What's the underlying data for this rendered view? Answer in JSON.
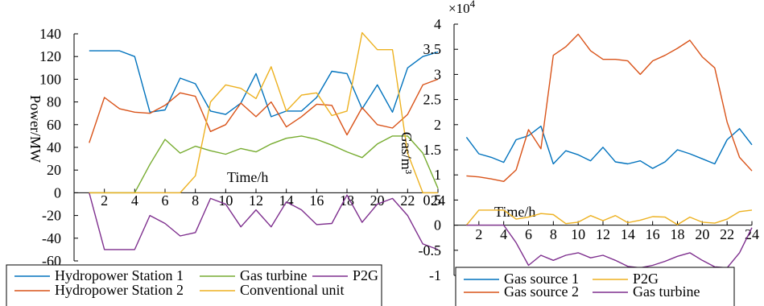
{
  "chart_data": [
    {
      "type": "line",
      "title": "",
      "xlabel": "Time/h",
      "ylabel": "Power/MW",
      "xlim": [
        0,
        24
      ],
      "ylim": [
        -60,
        140
      ],
      "x_ticks": [
        2,
        4,
        6,
        8,
        10,
        12,
        14,
        16,
        18,
        20,
        22,
        24
      ],
      "y_ticks": [
        -60,
        -40,
        -20,
        0,
        20,
        40,
        60,
        80,
        100,
        120,
        140
      ],
      "x_tick_labels": [
        "2",
        "4",
        "6",
        "8",
        "10",
        "12",
        "14",
        "16",
        "18",
        "20",
        "22",
        "24"
      ],
      "y_tick_labels": [
        "-60",
        "-40",
        "-20",
        "0",
        "20",
        "40",
        "60",
        "80",
        "100",
        "120",
        "140"
      ],
      "grid": false,
      "legend_position": "bottom",
      "x": [
        0,
        1,
        2,
        3,
        4,
        5,
        6,
        7,
        8,
        9,
        10,
        11,
        12,
        13,
        14,
        15,
        16,
        17,
        18,
        19,
        20,
        21,
        22,
        23,
        24
      ],
      "series": [
        {
          "name": "Hydropower Station 1",
          "color": "#0072bd",
          "values": [
            null,
            125,
            125,
            125,
            120,
            71,
            73,
            101,
            96,
            72,
            69,
            79,
            105,
            67,
            72,
            72,
            84,
            107,
            105,
            74,
            95,
            71,
            110,
            120,
            124
          ]
        },
        {
          "name": "Gas turbine",
          "color": "#77ac30",
          "values": [
            null,
            0,
            0,
            0,
            0,
            25,
            47,
            35,
            41,
            37,
            34,
            39,
            36,
            43,
            48,
            50,
            47,
            42,
            36,
            31,
            43,
            50,
            50,
            35,
            4
          ]
        },
        {
          "name": "P2G",
          "color": "#7e2f8e",
          "values": [
            null,
            0,
            -50,
            -50,
            -50,
            -20,
            -27,
            -38,
            -35,
            -5,
            -10,
            -30,
            -15,
            -30,
            -8,
            -15,
            -28,
            -27,
            -2,
            -26,
            -10,
            -5,
            -20,
            -45,
            -50
          ]
        },
        {
          "name": "Hydropower Station 2",
          "color": "#d95319",
          "values": [
            null,
            44,
            84,
            74,
            71,
            70,
            77,
            88,
            85,
            54,
            60,
            79,
            67,
            80,
            58,
            67,
            78,
            77,
            51,
            75,
            60,
            57,
            69,
            95,
            100
          ]
        },
        {
          "name": "Conventional unit",
          "color": "#edb120",
          "values": [
            null,
            0,
            0,
            0,
            0,
            0,
            0,
            0,
            15,
            80,
            95,
            92,
            83,
            111,
            72,
            86,
            88,
            68,
            72,
            141,
            126,
            126,
            35,
            0,
            0
          ]
        }
      ],
      "legend_layout": [
        [
          "Hydropower Station 1",
          "Gas turbine",
          "P2G"
        ],
        [
          "Hydropower Station 2",
          "Conventional unit"
        ]
      ]
    },
    {
      "type": "line",
      "title": "",
      "xlabel": "Time/h",
      "ylabel": "Gas/m³",
      "exponent_label": "×10",
      "exponent_sup": "4",
      "xlim": [
        0,
        24
      ],
      "ylim": [
        -1,
        4
      ],
      "x_ticks": [
        2,
        4,
        6,
        8,
        10,
        12,
        14,
        16,
        18,
        20,
        22,
        24
      ],
      "y_ticks": [
        -1,
        -0.5,
        0,
        0.5,
        1,
        1.5,
        2,
        2.5,
        3,
        3.5,
        4
      ],
      "x_tick_labels": [
        "2",
        "4",
        "6",
        "8",
        "10",
        "12",
        "14",
        "16",
        "18",
        "20",
        "22",
        "24"
      ],
      "y_tick_labels": [
        "-1",
        "-0.5",
        "0",
        "0.5",
        "1",
        "1.5",
        "2",
        "2.5",
        "3",
        "3.5",
        "4"
      ],
      "grid": false,
      "legend_position": "bottom",
      "x": [
        0,
        1,
        2,
        3,
        4,
        5,
        6,
        7,
        8,
        9,
        10,
        11,
        12,
        13,
        14,
        15,
        16,
        17,
        18,
        19,
        20,
        21,
        22,
        23,
        24
      ],
      "series": [
        {
          "name": "Gas source 1",
          "color": "#0072bd",
          "values": [
            null,
            1.75,
            1.42,
            1.35,
            1.25,
            1.7,
            1.78,
            1.97,
            1.22,
            1.48,
            1.4,
            1.28,
            1.55,
            1.26,
            1.22,
            1.28,
            1.13,
            1.26,
            1.5,
            1.42,
            1.32,
            1.22,
            1.7,
            1.92,
            1.6
          ]
        },
        {
          "name": "P2G",
          "color": "#edb120",
          "values": [
            null,
            0.0,
            0.3,
            0.3,
            0.3,
            0.12,
            0.16,
            0.23,
            0.21,
            0.03,
            0.06,
            0.19,
            0.09,
            0.19,
            0.05,
            0.1,
            0.17,
            0.16,
            0.01,
            0.16,
            0.06,
            0.04,
            0.12,
            0.27,
            0.3
          ]
        },
        {
          "name": "Gas source 2",
          "color": "#d95319",
          "values": [
            null,
            0.98,
            0.96,
            0.92,
            0.87,
            1.1,
            1.9,
            1.52,
            3.38,
            3.55,
            3.8,
            3.47,
            3.3,
            3.3,
            3.27,
            3.0,
            3.27,
            3.38,
            3.52,
            3.68,
            3.35,
            3.13,
            2.05,
            1.35,
            1.08
          ]
        },
        {
          "name": "Gas turbine",
          "color": "#7e2f8e",
          "values": [
            null,
            0,
            0,
            0,
            0,
            -0.35,
            -0.8,
            -0.6,
            -0.7,
            -0.6,
            -0.55,
            -0.65,
            -0.6,
            -0.7,
            -0.82,
            -0.85,
            -0.8,
            -0.72,
            -0.62,
            -0.55,
            -0.7,
            -0.83,
            -0.85,
            -0.55,
            -0.05
          ]
        }
      ],
      "legend_layout": [
        [
          "Gas source 1",
          "P2G"
        ],
        [
          "Gas source 2",
          "Gas turbine"
        ]
      ]
    }
  ]
}
